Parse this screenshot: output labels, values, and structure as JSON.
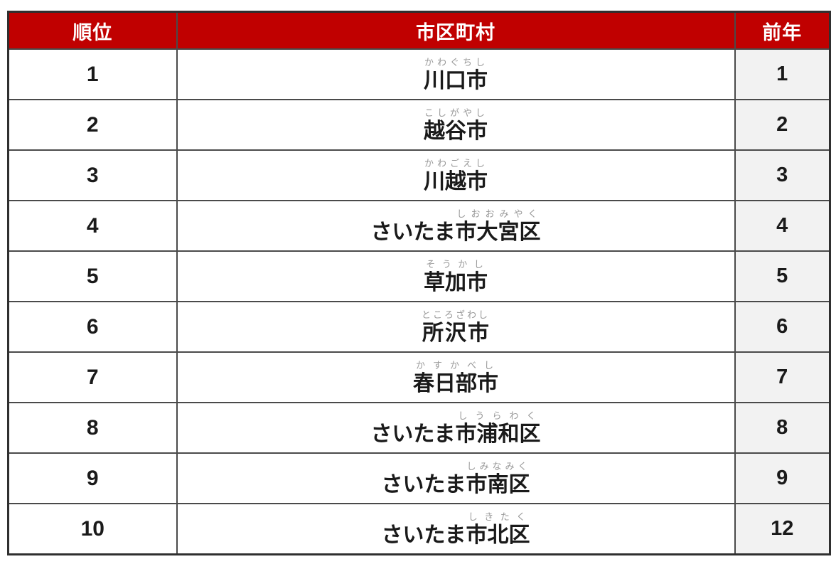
{
  "colors": {
    "header_bg": "#c00000",
    "header_text": "#ffffff",
    "prev_col_bg": "#f2f2f2",
    "body_bg": "#ffffff",
    "border_inner": "#4a4a4a",
    "border_outer": "#2f2f2f",
    "text_main": "#1a1a1a",
    "furigana": "#999999"
  },
  "table": {
    "headers": [
      {
        "key": "rank",
        "label": "順位"
      },
      {
        "key": "city",
        "label": "市区町村"
      },
      {
        "key": "prev",
        "label": "前年"
      }
    ],
    "rows": [
      {
        "rank": "1",
        "city_prefix": "",
        "city_base": "川口市",
        "furigana": "かわぐちし",
        "prev": "1"
      },
      {
        "rank": "2",
        "city_prefix": "",
        "city_base": "越谷市",
        "furigana": "こしがやし",
        "prev": "2"
      },
      {
        "rank": "3",
        "city_prefix": "",
        "city_base": "川越市",
        "furigana": "かわごえし",
        "prev": "3"
      },
      {
        "rank": "4",
        "city_prefix": "さいたま",
        "city_base": "市大宮区",
        "furigana": "しおおみやく",
        "prev": "4"
      },
      {
        "rank": "5",
        "city_prefix": "",
        "city_base": "草加市",
        "furigana": "そうかし",
        "prev": "5"
      },
      {
        "rank": "6",
        "city_prefix": "",
        "city_base": "所沢市",
        "furigana": "ところざわし",
        "prev": "6"
      },
      {
        "rank": "7",
        "city_prefix": "",
        "city_base": "春日部市",
        "furigana": "かすかべし",
        "prev": "7"
      },
      {
        "rank": "8",
        "city_prefix": "さいたま",
        "city_base": "市浦和区",
        "furigana": "しうらわく",
        "prev": "8"
      },
      {
        "rank": "9",
        "city_prefix": "さいたま",
        "city_base": "市南区",
        "furigana": "しみなみく",
        "prev": "9"
      },
      {
        "rank": "10",
        "city_prefix": "さいたま",
        "city_base": "市北区",
        "furigana": "しきたく",
        "prev": "12"
      }
    ]
  },
  "chart_data": {
    "type": "table",
    "columns": [
      "順位",
      "市区町村",
      "前年"
    ],
    "rows": [
      {
        "rank": 1,
        "city": "川口市",
        "furigana": "かわぐちし",
        "prev_year": 1
      },
      {
        "rank": 2,
        "city": "越谷市",
        "furigana": "こしがやし",
        "prev_year": 2
      },
      {
        "rank": 3,
        "city": "川越市",
        "furigana": "かわごえし",
        "prev_year": 3
      },
      {
        "rank": 4,
        "city": "さいたま市大宮区",
        "furigana": "しおおみやく",
        "prev_year": 4
      },
      {
        "rank": 5,
        "city": "草加市",
        "furigana": "そうかし",
        "prev_year": 5
      },
      {
        "rank": 6,
        "city": "所沢市",
        "furigana": "ところざわし",
        "prev_year": 6
      },
      {
        "rank": 7,
        "city": "春日部市",
        "furigana": "かすかべし",
        "prev_year": 7
      },
      {
        "rank": 8,
        "city": "さいたま市浦和区",
        "furigana": "しうらわく",
        "prev_year": 8
      },
      {
        "rank": 9,
        "city": "さいたま市南区",
        "furigana": "しみなみく",
        "prev_year": 9
      },
      {
        "rank": 10,
        "city": "さいたま市北区",
        "furigana": "しきたく",
        "prev_year": 12
      }
    ],
    "title": "",
    "legend": "none",
    "grid": "on"
  }
}
